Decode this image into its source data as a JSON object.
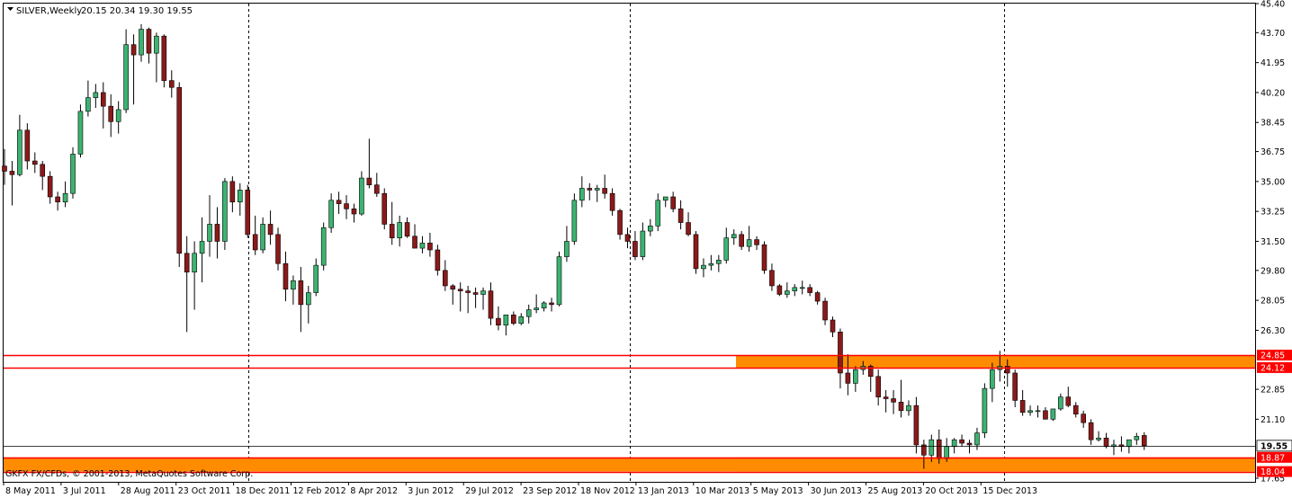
{
  "header": {
    "symbol": "SILVER,Weekly",
    "ohlc": "20.15 20.34 19.30 19.55"
  },
  "copyright": "GKFX FX/CFDs, © 2001-2013, MetaQuotes Software Corp.",
  "colors": {
    "bull": "#3cb371",
    "bear": "#8b1a1a",
    "zone_fill": "#ff8c00",
    "zone_line": "#ff0000",
    "grid": "#000000",
    "current_price_line": "#000000"
  },
  "chart_data": {
    "type": "candlestick",
    "timeframe": "Weekly",
    "ylim": [
      17.65,
      45.4
    ],
    "y_ticks": [
      45.4,
      43.7,
      41.95,
      40.2,
      38.45,
      36.75,
      35.0,
      33.25,
      31.5,
      29.8,
      28.05,
      26.3,
      22.85,
      21.1,
      17.65
    ],
    "x_ticks": [
      "8 May 2011",
      "3 Jul 2011",
      "28 Aug 2011",
      "23 Oct 2011",
      "18 Dec 2011",
      "12 Feb 2012",
      "8 Apr 2012",
      "3 Jun 2012",
      "29 Jul 2012",
      "23 Sep 2012",
      "18 Nov 2012",
      "13 Jan 2013",
      "10 Mar 2013",
      "5 May 2013",
      "30 Jun 2013",
      "25 Aug 2013",
      "20 Oct 2013",
      "15 Dec 2013"
    ],
    "grid": "dashed vertical lines at year starts",
    "price_levels": [
      {
        "label": "24.85",
        "value": 24.85
      },
      {
        "label": "24.12",
        "value": 24.12
      },
      {
        "label": "19.55",
        "value": 19.55
      },
      {
        "label": "18.87",
        "value": 18.87
      },
      {
        "label": "18.04",
        "value": 18.04
      }
    ],
    "zones": [
      {
        "top": 24.85,
        "bottom": 24.12
      },
      {
        "top": 18.87,
        "bottom": 18.04
      }
    ],
    "candles": [
      [
        35.9,
        36.9,
        34.8,
        35.6
      ],
      [
        35.6,
        36.2,
        33.6,
        35.4
      ],
      [
        35.4,
        38.9,
        35.3,
        38.0
      ],
      [
        38.0,
        38.4,
        35.7,
        36.2
      ],
      [
        36.2,
        36.7,
        35.5,
        36.0
      ],
      [
        36.0,
        36.2,
        34.5,
        35.3
      ],
      [
        35.3,
        35.6,
        33.7,
        34.1
      ],
      [
        34.1,
        34.4,
        33.3,
        33.8
      ],
      [
        33.8,
        35.0,
        33.5,
        34.3
      ],
      [
        34.3,
        37.0,
        34.0,
        36.6
      ],
      [
        36.6,
        39.5,
        36.4,
        39.1
      ],
      [
        39.1,
        40.9,
        38.8,
        39.9
      ],
      [
        39.9,
        40.7,
        39.3,
        40.2
      ],
      [
        40.2,
        40.8,
        38.1,
        39.4
      ],
      [
        39.4,
        40.1,
        37.6,
        38.5
      ],
      [
        38.5,
        39.7,
        37.8,
        39.2
      ],
      [
        39.2,
        43.9,
        39.0,
        43.0
      ],
      [
        43.0,
        43.6,
        39.5,
        42.4
      ],
      [
        42.4,
        44.2,
        42.0,
        43.9
      ],
      [
        43.9,
        44.0,
        41.9,
        42.5
      ],
      [
        42.5,
        43.7,
        40.8,
        43.5
      ],
      [
        43.5,
        43.6,
        40.5,
        40.9
      ],
      [
        40.9,
        41.5,
        39.9,
        40.5
      ],
      [
        40.5,
        40.8,
        30.0,
        30.8
      ],
      [
        30.8,
        31.8,
        26.2,
        29.7
      ],
      [
        29.7,
        31.5,
        27.5,
        30.8
      ],
      [
        30.8,
        32.9,
        29.1,
        31.5
      ],
      [
        31.5,
        34.2,
        30.6,
        32.5
      ],
      [
        32.5,
        33.5,
        30.5,
        31.5
      ],
      [
        31.5,
        35.2,
        31.0,
        35.0
      ],
      [
        35.0,
        35.3,
        33.2,
        33.8
      ],
      [
        33.8,
        34.9,
        33.0,
        34.5
      ],
      [
        34.5,
        34.8,
        31.7,
        31.9
      ],
      [
        31.9,
        33.0,
        30.7,
        31.0
      ],
      [
        31.0,
        32.9,
        30.8,
        32.5
      ],
      [
        32.5,
        33.3,
        31.3,
        31.9
      ],
      [
        31.9,
        32.3,
        29.8,
        30.2
      ],
      [
        30.2,
        30.9,
        28.0,
        28.7
      ],
      [
        28.7,
        29.5,
        27.8,
        29.2
      ],
      [
        29.2,
        30.0,
        26.2,
        27.8
      ],
      [
        27.8,
        28.9,
        26.7,
        28.5
      ],
      [
        28.5,
        30.5,
        28.3,
        30.1
      ],
      [
        30.1,
        32.6,
        29.8,
        32.3
      ],
      [
        32.3,
        34.3,
        32.0,
        33.9
      ],
      [
        33.9,
        34.4,
        33.1,
        33.7
      ],
      [
        33.7,
        34.2,
        32.8,
        33.4
      ],
      [
        33.4,
        33.7,
        32.6,
        33.1
      ],
      [
        33.1,
        35.6,
        33.0,
        35.2
      ],
      [
        35.2,
        37.5,
        34.6,
        34.8
      ],
      [
        34.8,
        35.5,
        34.1,
        34.3
      ],
      [
        34.3,
        34.6,
        32.2,
        32.5
      ],
      [
        32.5,
        33.8,
        31.3,
        31.7
      ],
      [
        31.7,
        33.0,
        31.2,
        32.6
      ],
      [
        32.6,
        32.9,
        31.7,
        31.8
      ],
      [
        31.8,
        32.5,
        31.1,
        31.1
      ],
      [
        31.1,
        31.8,
        30.8,
        31.4
      ],
      [
        31.4,
        32.0,
        30.6,
        31.0
      ],
      [
        31.0,
        31.3,
        29.5,
        29.8
      ],
      [
        29.8,
        30.4,
        28.6,
        28.9
      ],
      [
        28.9,
        29.0,
        27.8,
        28.7
      ],
      [
        28.7,
        29.1,
        27.4,
        28.6
      ],
      [
        28.6,
        28.9,
        27.3,
        28.5
      ],
      [
        28.5,
        28.8,
        27.6,
        28.4
      ],
      [
        28.4,
        28.8,
        27.5,
        28.6
      ],
      [
        28.6,
        29.1,
        26.6,
        27.0
      ],
      [
        27.0,
        27.7,
        26.3,
        26.6
      ],
      [
        26.6,
        27.1,
        26.0,
        27.2
      ],
      [
        27.2,
        27.4,
        26.6,
        26.7
      ],
      [
        26.7,
        27.3,
        26.6,
        27.1
      ],
      [
        27.1,
        27.8,
        26.7,
        27.5
      ],
      [
        27.5,
        28.4,
        27.3,
        27.6
      ],
      [
        27.6,
        28.0,
        27.4,
        27.9
      ],
      [
        27.9,
        28.2,
        27.4,
        27.8
      ],
      [
        27.8,
        30.9,
        27.7,
        30.6
      ],
      [
        30.6,
        32.4,
        30.3,
        31.5
      ],
      [
        31.5,
        34.3,
        31.3,
        33.9
      ],
      [
        33.9,
        35.3,
        33.5,
        34.6
      ],
      [
        34.6,
        34.9,
        33.9,
        34.5
      ],
      [
        34.5,
        34.8,
        33.8,
        34.6
      ],
      [
        34.6,
        35.4,
        34.0,
        34.3
      ],
      [
        34.3,
        34.6,
        33.0,
        33.3
      ],
      [
        33.3,
        33.4,
        31.6,
        31.9
      ],
      [
        31.9,
        32.3,
        31.1,
        31.5
      ],
      [
        31.5,
        32.1,
        30.4,
        30.6
      ],
      [
        30.6,
        32.6,
        30.4,
        32.1
      ],
      [
        32.1,
        32.8,
        31.8,
        32.4
      ],
      [
        32.4,
        34.3,
        32.1,
        33.9
      ],
      [
        33.9,
        34.0,
        33.5,
        34.1
      ],
      [
        34.1,
        34.4,
        33.2,
        33.4
      ],
      [
        33.4,
        33.9,
        32.2,
        32.6
      ],
      [
        32.6,
        33.2,
        31.8,
        31.9
      ],
      [
        31.9,
        32.1,
        29.6,
        29.9
      ],
      [
        29.9,
        30.5,
        29.4,
        30.1
      ],
      [
        30.1,
        30.7,
        29.8,
        30.2
      ],
      [
        30.2,
        30.7,
        29.7,
        30.4
      ],
      [
        30.4,
        32.3,
        30.2,
        31.7
      ],
      [
        31.7,
        32.2,
        31.3,
        31.9
      ],
      [
        31.9,
        32.1,
        31.0,
        31.2
      ],
      [
        31.2,
        32.4,
        30.9,
        31.6
      ],
      [
        31.6,
        31.8,
        31.0,
        31.3
      ],
      [
        31.3,
        31.5,
        29.6,
        29.8
      ],
      [
        29.8,
        30.2,
        28.6,
        28.9
      ],
      [
        28.9,
        29.0,
        28.3,
        28.4
      ],
      [
        28.4,
        29.1,
        28.2,
        28.6
      ],
      [
        28.6,
        29.0,
        28.3,
        28.8
      ],
      [
        28.8,
        29.2,
        28.4,
        28.8
      ],
      [
        28.8,
        29.0,
        28.3,
        28.5
      ],
      [
        28.5,
        28.6,
        27.8,
        28.0
      ],
      [
        28.0,
        28.2,
        26.6,
        26.9
      ],
      [
        26.9,
        27.1,
        25.9,
        26.2
      ],
      [
        26.2,
        26.4,
        22.9,
        23.8
      ],
      [
        23.8,
        24.9,
        22.5,
        23.2
      ],
      [
        23.2,
        24.2,
        22.7,
        24.0
      ],
      [
        24.0,
        24.5,
        23.7,
        24.2
      ],
      [
        24.2,
        24.3,
        22.7,
        23.6
      ],
      [
        23.6,
        24.0,
        21.9,
        22.4
      ],
      [
        22.4,
        22.8,
        21.5,
        22.3
      ],
      [
        22.3,
        22.8,
        21.4,
        22.1
      ],
      [
        22.1,
        23.4,
        21.2,
        21.6
      ],
      [
        21.6,
        22.2,
        21.3,
        21.9
      ],
      [
        21.9,
        22.4,
        19.1,
        19.6
      ],
      [
        19.6,
        19.9,
        18.2,
        19.0
      ],
      [
        19.0,
        20.2,
        18.6,
        19.9
      ],
      [
        19.9,
        20.5,
        18.5,
        18.8
      ],
      [
        18.8,
        20.0,
        18.6,
        19.5
      ],
      [
        19.5,
        20.0,
        19.1,
        19.9
      ],
      [
        19.9,
        20.2,
        19.5,
        19.7
      ],
      [
        19.7,
        19.9,
        19.1,
        19.6
      ],
      [
        19.6,
        20.6,
        19.3,
        20.3
      ],
      [
        20.3,
        23.2,
        20.0,
        22.9
      ],
      [
        22.9,
        24.4,
        22.1,
        24.0
      ],
      [
        24.0,
        25.1,
        23.3,
        24.2
      ],
      [
        24.2,
        24.6,
        23.0,
        23.8
      ],
      [
        23.8,
        24.0,
        21.8,
        22.2
      ],
      [
        22.2,
        22.8,
        21.3,
        21.5
      ],
      [
        21.5,
        21.9,
        21.3,
        21.6
      ],
      [
        21.6,
        21.9,
        21.2,
        21.6
      ],
      [
        21.6,
        21.8,
        21.1,
        21.1
      ],
      [
        21.1,
        21.7,
        21.0,
        21.7
      ],
      [
        21.7,
        22.6,
        21.6,
        22.4
      ],
      [
        22.4,
        23.0,
        21.8,
        21.9
      ],
      [
        21.9,
        22.1,
        21.2,
        21.4
      ],
      [
        21.4,
        21.6,
        20.6,
        20.9
      ],
      [
        20.9,
        21.1,
        19.6,
        19.9
      ],
      [
        19.9,
        20.4,
        19.8,
        20.0
      ],
      [
        20.0,
        20.3,
        19.4,
        19.5
      ],
      [
        19.5,
        19.9,
        19.0,
        19.6
      ],
      [
        19.6,
        20.1,
        19.2,
        19.5
      ],
      [
        19.5,
        19.8,
        19.1,
        19.9
      ],
      [
        19.9,
        20.3,
        19.6,
        20.1
      ],
      [
        20.15,
        20.34,
        19.3,
        19.55
      ]
    ]
  }
}
